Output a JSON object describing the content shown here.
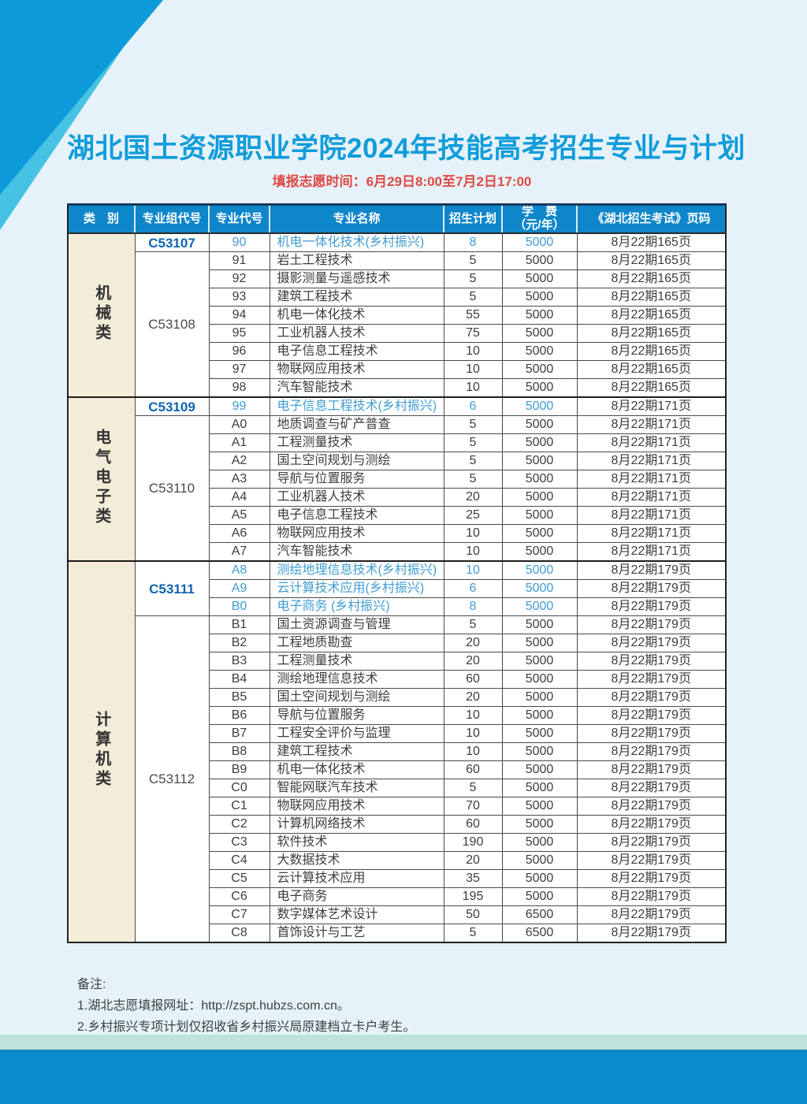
{
  "page": {
    "title": "湖北国土资源职业学院2024年技能高考招生专业与计划",
    "deadline": "填报志愿时间：6月29日8:00至7月2日17:00",
    "notes_title": "备注:",
    "notes": [
      "1.湖北志愿填报网址：http://zspt.hubzs.com.cn。",
      "2.乡村振兴专项计划仅招收省乡村振兴局原建档立卡户考生。"
    ]
  },
  "colors": {
    "page_background": "#e6f2f9",
    "header_blue": "#0e86ca",
    "title_blue": "#0f9cda",
    "deadline_red": "#de4a45",
    "highlight_text_blue": "#409cd3",
    "group_code_blue": "#1164ae",
    "category_beige": "#f3ecd8",
    "ribbon_blue": "#0c9bd8",
    "ribbon_cyan": "#45c2e4",
    "footer_teal": "#bfe3da",
    "footer_blue": "#0a8bce"
  },
  "table": {
    "headers": [
      "类　别",
      "专业组代号",
      "专业代号",
      "专业名称",
      "招生计划",
      "学　费\n（元/年）",
      "《湖北招生考试》页码"
    ],
    "categories": [
      {
        "name": "机械类",
        "groups": [
          {
            "code": "C53107",
            "highlight": true,
            "rows": [
              [
                "90",
                "机电一体化技术(乡村振兴)",
                "8",
                "5000",
                "8月22期165页",
                true
              ]
            ]
          },
          {
            "code": "C53108",
            "highlight": false,
            "rows": [
              [
                "91",
                "岩土工程技术",
                "5",
                "5000",
                "8月22期165页",
                false
              ],
              [
                "92",
                "摄影测量与遥感技术",
                "5",
                "5000",
                "8月22期165页",
                false
              ],
              [
                "93",
                "建筑工程技术",
                "5",
                "5000",
                "8月22期165页",
                false
              ],
              [
                "94",
                "机电一体化技术",
                "55",
                "5000",
                "8月22期165页",
                false
              ],
              [
                "95",
                "工业机器人技术",
                "75",
                "5000",
                "8月22期165页",
                false
              ],
              [
                "96",
                "电子信息工程技术",
                "10",
                "5000",
                "8月22期165页",
                false
              ],
              [
                "97",
                "物联网应用技术",
                "10",
                "5000",
                "8月22期165页",
                false
              ],
              [
                "98",
                "汽车智能技术",
                "10",
                "5000",
                "8月22期165页",
                false
              ]
            ]
          }
        ]
      },
      {
        "name": "电气电子类",
        "groups": [
          {
            "code": "C53109",
            "highlight": true,
            "rows": [
              [
                "99",
                "电子信息工程技术(乡村振兴)",
                "6",
                "5000",
                "8月22期171页",
                true
              ]
            ]
          },
          {
            "code": "C53110",
            "highlight": false,
            "rows": [
              [
                "A0",
                "地质调查与矿产普查",
                "5",
                "5000",
                "8月22期171页",
                false
              ],
              [
                "A1",
                "工程测量技术",
                "5",
                "5000",
                "8月22期171页",
                false
              ],
              [
                "A2",
                "国土空间规划与测绘",
                "5",
                "5000",
                "8月22期171页",
                false
              ],
              [
                "A3",
                "导航与位置服务",
                "5",
                "5000",
                "8月22期171页",
                false
              ],
              [
                "A4",
                "工业机器人技术",
                "20",
                "5000",
                "8月22期171页",
                false
              ],
              [
                "A5",
                "电子信息工程技术",
                "25",
                "5000",
                "8月22期171页",
                false
              ],
              [
                "A6",
                "物联网应用技术",
                "10",
                "5000",
                "8月22期171页",
                false
              ],
              [
                "A7",
                "汽车智能技术",
                "10",
                "5000",
                "8月22期171页",
                false
              ]
            ]
          }
        ]
      },
      {
        "name": "计算机类",
        "groups": [
          {
            "code": "C53111",
            "highlight": true,
            "rows": [
              [
                "A8",
                "测绘地理信息技术(乡村振兴)",
                "10",
                "5000",
                "8月22期179页",
                true
              ],
              [
                "A9",
                "云计算技术应用(乡村振兴)",
                "6",
                "5000",
                "8月22期179页",
                true
              ],
              [
                "B0",
                "电子商务 (乡村振兴)",
                "8",
                "5000",
                "8月22期179页",
                true
              ]
            ]
          },
          {
            "code": "C53112",
            "highlight": false,
            "rows": [
              [
                "B1",
                "国土资源调查与管理",
                "5",
                "5000",
                "8月22期179页",
                false
              ],
              [
                "B2",
                "工程地质勘查",
                "20",
                "5000",
                "8月22期179页",
                false
              ],
              [
                "B3",
                "工程测量技术",
                "20",
                "5000",
                "8月22期179页",
                false
              ],
              [
                "B4",
                "测绘地理信息技术",
                "60",
                "5000",
                "8月22期179页",
                false
              ],
              [
                "B5",
                "国土空间规划与测绘",
                "20",
                "5000",
                "8月22期179页",
                false
              ],
              [
                "B6",
                "导航与位置服务",
                "10",
                "5000",
                "8月22期179页",
                false
              ],
              [
                "B7",
                "工程安全评价与监理",
                "10",
                "5000",
                "8月22期179页",
                false
              ],
              [
                "B8",
                "建筑工程技术",
                "10",
                "5000",
                "8月22期179页",
                false
              ],
              [
                "B9",
                "机电一体化技术",
                "60",
                "5000",
                "8月22期179页",
                false
              ],
              [
                "C0",
                "智能网联汽车技术",
                "5",
                "5000",
                "8月22期179页",
                false
              ],
              [
                "C1",
                "物联网应用技术",
                "70",
                "5000",
                "8月22期179页",
                false
              ],
              [
                "C2",
                "计算机网络技术",
                "60",
                "5000",
                "8月22期179页",
                false
              ],
              [
                "C3",
                "软件技术",
                "190",
                "5000",
                "8月22期179页",
                false
              ],
              [
                "C4",
                "大数据技术",
                "20",
                "5000",
                "8月22期179页",
                false
              ],
              [
                "C5",
                "云计算技术应用",
                "35",
                "5000",
                "8月22期179页",
                false
              ],
              [
                "C6",
                "电子商务",
                "195",
                "5000",
                "8月22期179页",
                false
              ],
              [
                "C7",
                "数字媒体艺术设计",
                "50",
                "6500",
                "8月22期179页",
                false
              ],
              [
                "C8",
                "首饰设计与工艺",
                "5",
                "6500",
                "8月22期179页",
                false
              ]
            ]
          }
        ]
      }
    ]
  }
}
